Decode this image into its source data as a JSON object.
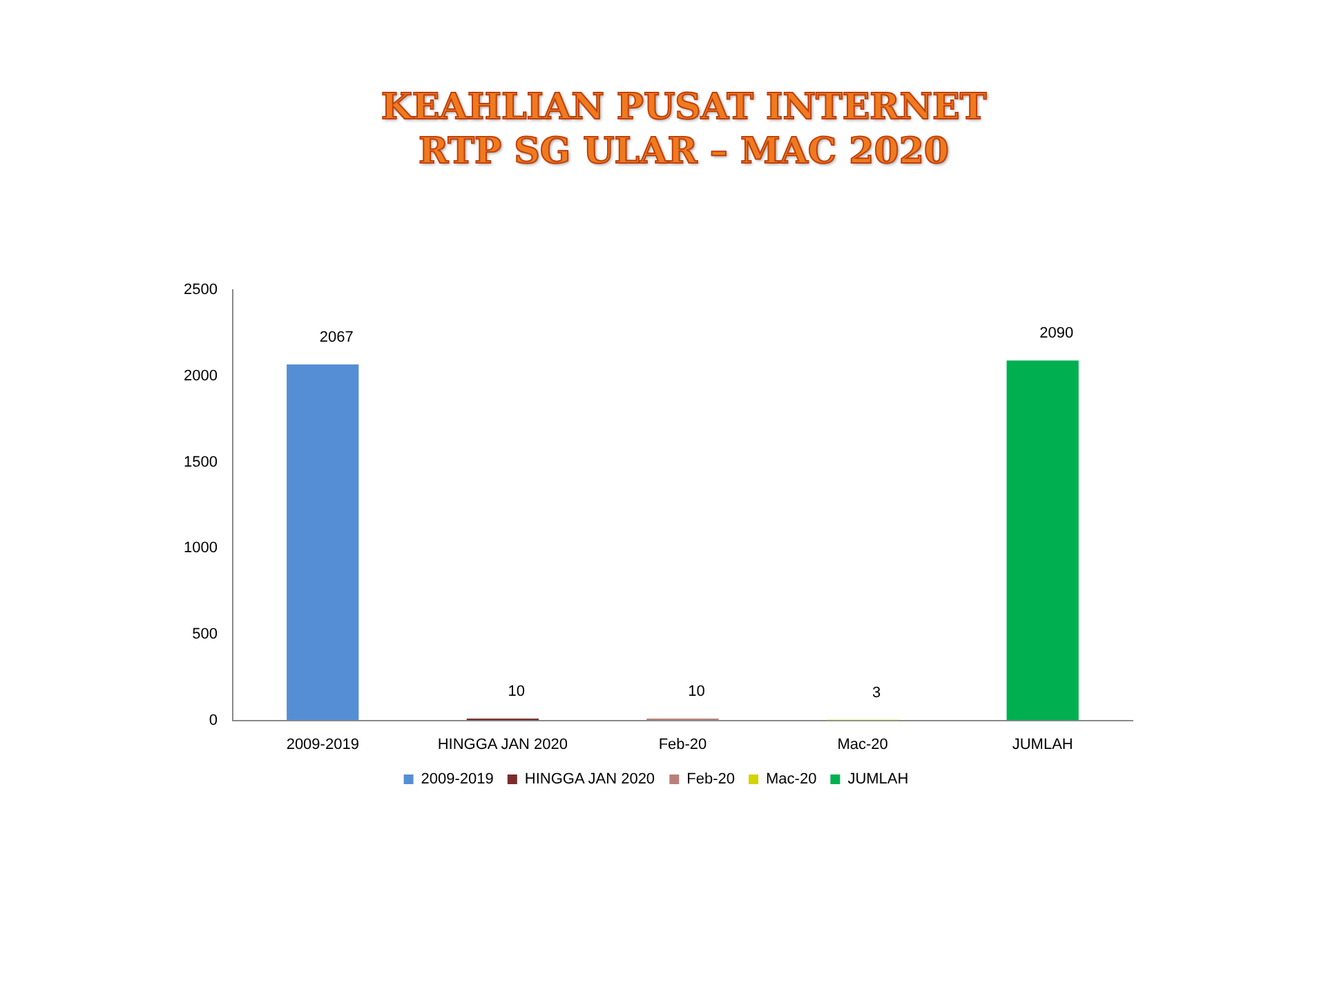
{
  "chart_data": {
    "type": "bar",
    "title": "KEAHLIAN PUSAT INTERNET\nRTP SG ULAR – MAC 2020",
    "categories": [
      "2009-2019",
      "HINGGA JAN 2020",
      "Feb-20",
      "Mac-20",
      "JUMLAH"
    ],
    "series": [
      {
        "name": "2009-2019",
        "color": "#558ed5",
        "values": [
          2067,
          null,
          null,
          null,
          null
        ]
      },
      {
        "name": "HINGGA JAN 2020",
        "color": "#7b2c2c",
        "values": [
          null,
          10,
          null,
          null,
          null
        ]
      },
      {
        "name": "Feb-20",
        "color": "#b9807b",
        "values": [
          null,
          null,
          10,
          null,
          null
        ]
      },
      {
        "name": "Mac-20",
        "color": "#d4d400",
        "values": [
          null,
          null,
          null,
          3,
          null
        ]
      },
      {
        "name": "JUMLAH",
        "color": "#00b050",
        "values": [
          null,
          null,
          null,
          null,
          2090
        ]
      }
    ],
    "ylim": [
      0,
      2500
    ],
    "yticks": [
      0,
      500,
      1000,
      1500,
      2000,
      2500
    ],
    "grid": false,
    "legend": "bottom",
    "data_labels": true
  }
}
